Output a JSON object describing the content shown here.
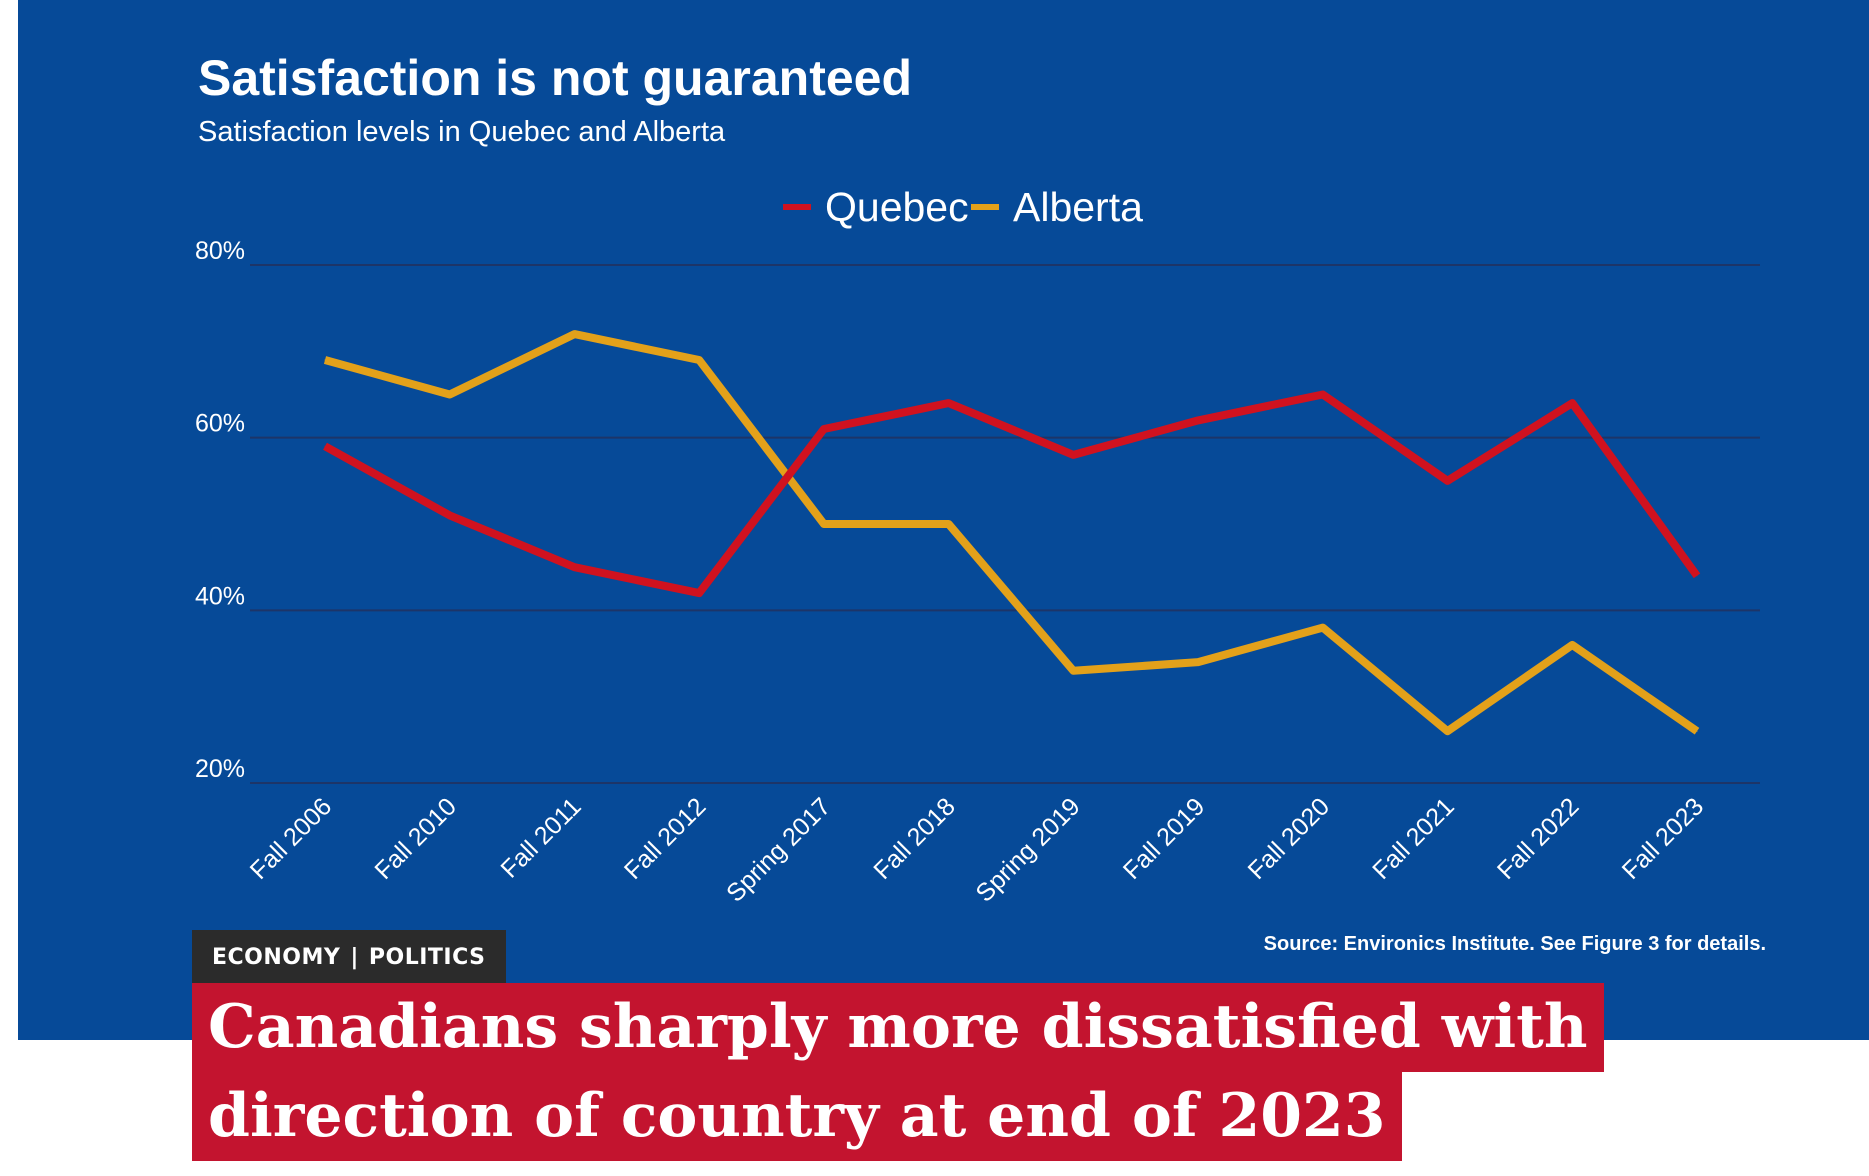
{
  "chart_data": {
    "type": "line",
    "title": "Satisfaction is not guaranteed",
    "subtitle": "Satisfaction levels in Quebec and Alberta",
    "categories": [
      "Fall 2006",
      "Fall 2010",
      "Fall 2011",
      "Fall 2012",
      "Spring 2017",
      "Fall 2018",
      "Spring 2019",
      "Fall 2019",
      "Fall 2020",
      "Fall 2021",
      "Fall 2022",
      "Fall 2023"
    ],
    "series": [
      {
        "name": "Quebec",
        "color": "#d0121f",
        "values": [
          59,
          51,
          45,
          42,
          61,
          64,
          58,
          62,
          65,
          55,
          64,
          44
        ]
      },
      {
        "name": "Alberta",
        "color": "#e3a11a",
        "values": [
          69,
          65,
          72,
          69,
          50,
          50,
          33,
          34,
          38,
          26,
          36,
          26
        ]
      }
    ],
    "y_ticks": [
      80,
      60,
      40,
      20
    ],
    "y_tick_labels": [
      "80%",
      "60%",
      "40%",
      "20%"
    ],
    "ylim": [
      20,
      80
    ],
    "xlabel": "",
    "ylabel": "",
    "grid": true,
    "legend_position": "top-center",
    "source": "Source: Environics Institute. See Figure 3 for details."
  },
  "article": {
    "category_1": "ECONOMY",
    "separator": "|",
    "category_2": "POLITICS",
    "headline_line_1": "Canadians sharply more dissatisfied with",
    "headline_line_2": "direction of country at end of 2023"
  },
  "colors": {
    "panel_background": "#064a98",
    "headline_background": "#c3142f",
    "tag_background": "#2b2b2b"
  }
}
